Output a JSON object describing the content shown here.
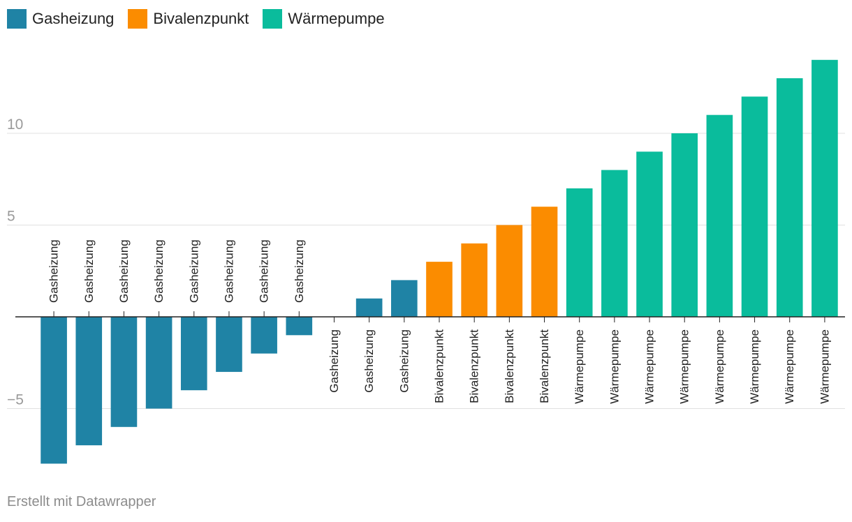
{
  "legend": [
    {
      "label": "Gasheizung",
      "color": "#1f83a5"
    },
    {
      "label": "Bivalenzpunkt",
      "color": "#fb8c00"
    },
    {
      "label": "Wärmepumpe",
      "color": "#0abc9c"
    }
  ],
  "footer": "Erstellt mit Datawrapper",
  "chart_data": {
    "type": "bar",
    "categories": [
      "Gasheizung",
      "Gasheizung",
      "Gasheizung",
      "Gasheizung",
      "Gasheizung",
      "Gasheizung",
      "Gasheizung",
      "Gasheizung",
      "Gasheizung",
      "Gasheizung",
      "Gasheizung",
      "Bivalenzpunkt",
      "Bivalenzpunkt",
      "Bivalenzpunkt",
      "Bivalenzpunkt",
      "Wärmepumpe",
      "Wärmepumpe",
      "Wärmepumpe",
      "Wärmepumpe",
      "Wärmepumpe",
      "Wärmepumpe",
      "Wärmepumpe",
      "Wärmepumpe"
    ],
    "values": [
      -8,
      -7,
      -6,
      -5,
      -4,
      -3,
      -2,
      -1,
      0,
      1,
      2,
      3,
      4,
      5,
      6,
      7,
      8,
      9,
      10,
      11,
      12,
      13,
      14
    ],
    "groups": [
      "Gasheizung",
      "Gasheizung",
      "Gasheizung",
      "Gasheizung",
      "Gasheizung",
      "Gasheizung",
      "Gasheizung",
      "Gasheizung",
      "Gasheizung",
      "Gasheizung",
      "Gasheizung",
      "Bivalenzpunkt",
      "Bivalenzpunkt",
      "Bivalenzpunkt",
      "Bivalenzpunkt",
      "Wärmepumpe",
      "Wärmepumpe",
      "Wärmepumpe",
      "Wärmepumpe",
      "Wärmepumpe",
      "Wärmepumpe",
      "Wärmepumpe",
      "Wärmepumpe"
    ],
    "yticks": [
      "10",
      "5",
      "−5"
    ],
    "ytick_values": [
      10,
      5,
      -5
    ],
    "ylim": [
      -8,
      14
    ],
    "grid": true,
    "legend_position": "top-left"
  }
}
